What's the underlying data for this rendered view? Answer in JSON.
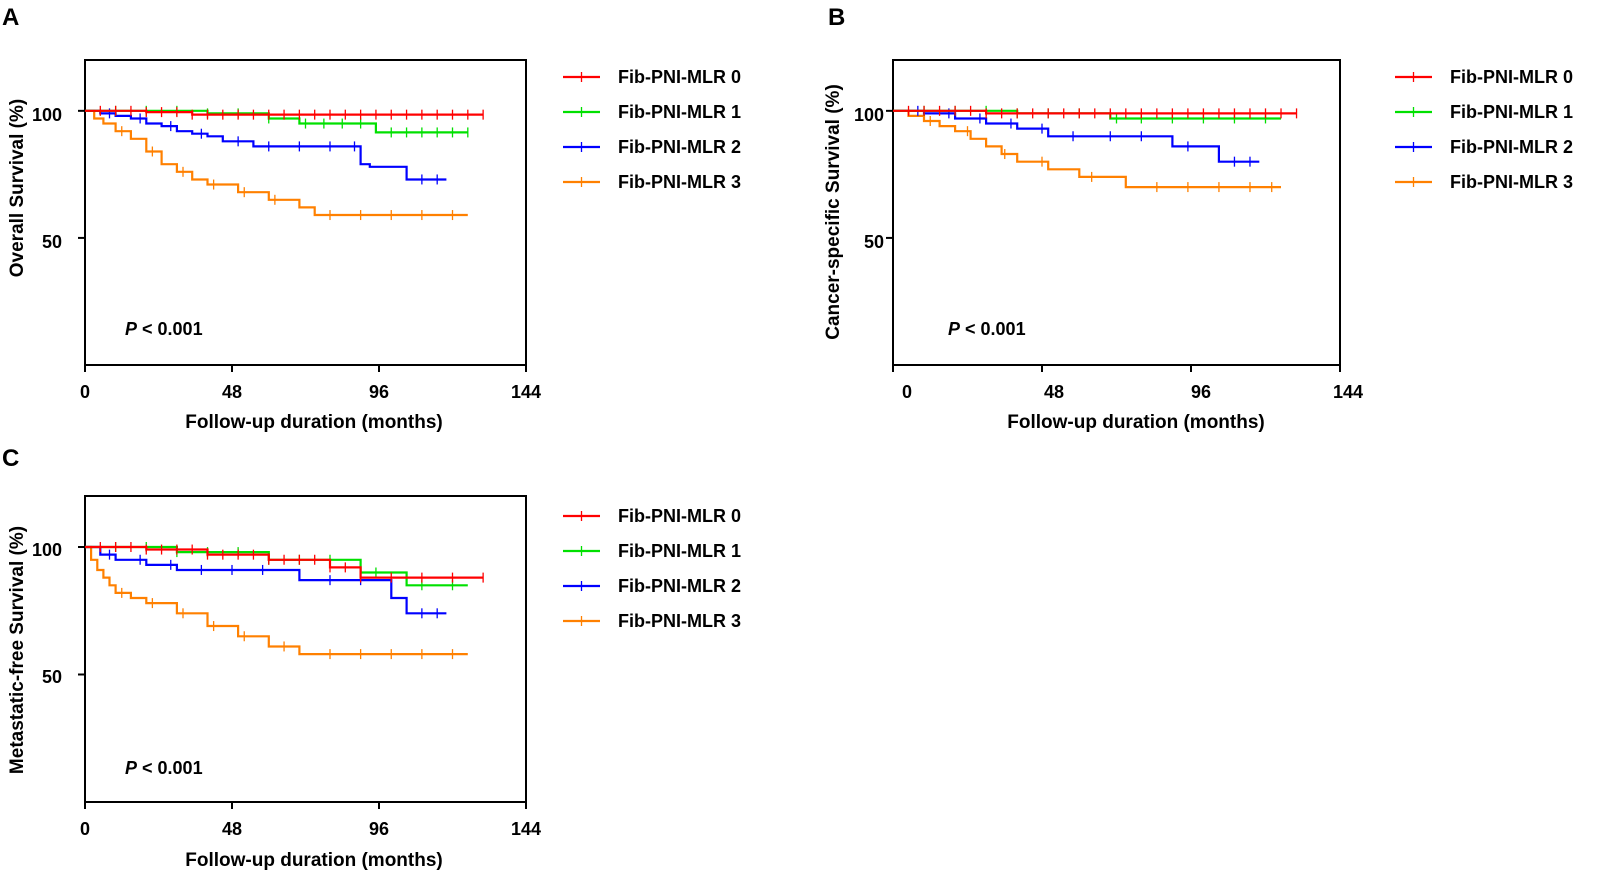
{
  "chart_data": [
    {
      "type": "line",
      "panel": "A",
      "title": "",
      "xlabel": "Follow-up duration (months)",
      "ylabel": "Overall Survival (%)",
      "xlim": [
        0,
        144
      ],
      "ylim": [
        0,
        120
      ],
      "xticks": [
        "0",
        "48",
        "96",
        "144"
      ],
      "yticks": [
        "50",
        "100"
      ],
      "grid": false,
      "legend": "right",
      "p_prefix": "P",
      "p_rest": " < 0.001",
      "series": [
        {
          "name": "Fib-PNI-MLR 0",
          "color": "#ff0000",
          "x": [
            0,
            20,
            35,
            130
          ],
          "y": [
            100,
            99.5,
            98.5,
            98.5
          ],
          "censor": [
            5,
            10,
            15,
            20,
            25,
            30,
            35,
            40,
            45,
            50,
            55,
            60,
            65,
            70,
            75,
            80,
            85,
            90,
            95,
            100,
            105,
            110,
            115,
            120,
            125,
            130
          ]
        },
        {
          "name": "Fib-PNI-MLR 1",
          "color": "#00e000",
          "x": [
            0,
            40,
            60,
            70,
            95,
            125
          ],
          "y": [
            100,
            99,
            97,
            95,
            91.5,
            91.5
          ],
          "censor": [
            10,
            20,
            30,
            40,
            50,
            60,
            72,
            78,
            84,
            90,
            100,
            105,
            110,
            115,
            120,
            125
          ]
        },
        {
          "name": "Fib-PNI-MLR 2",
          "color": "#0000ff",
          "x": [
            0,
            5,
            10,
            15,
            20,
            25,
            30,
            35,
            40,
            45,
            55,
            90,
            93,
            105,
            118
          ],
          "y": [
            100,
            99,
            98,
            97,
            95,
            94,
            92,
            91,
            90,
            88,
            86,
            79,
            78,
            73,
            73
          ],
          "censor": [
            8,
            18,
            28,
            38,
            50,
            60,
            70,
            80,
            88,
            110,
            115
          ]
        },
        {
          "name": "Fib-PNI-MLR 3",
          "color": "#ff8000",
          "x": [
            0,
            3,
            6,
            10,
            15,
            20,
            25,
            30,
            35,
            40,
            50,
            60,
            70,
            75,
            125
          ],
          "y": [
            100,
            97,
            95,
            92,
            89,
            84,
            79,
            76,
            73,
            71,
            68,
            65,
            62,
            59,
            59
          ],
          "censor": [
            12,
            22,
            32,
            42,
            52,
            62,
            80,
            90,
            100,
            110,
            120
          ]
        }
      ]
    },
    {
      "type": "line",
      "panel": "B",
      "title": "",
      "xlabel": "Follow-up duration (months)",
      "ylabel": "Cancer-specific Survival (%)",
      "xlim": [
        0,
        144
      ],
      "ylim": [
        0,
        120
      ],
      "xticks": [
        "0",
        "48",
        "96",
        "144"
      ],
      "yticks": [
        "50",
        "100"
      ],
      "grid": false,
      "legend": "right",
      "p_prefix": "P",
      "p_rest": " < 0.001",
      "series": [
        {
          "name": "Fib-PNI-MLR 0",
          "color": "#ff0000",
          "x": [
            0,
            30,
            130
          ],
          "y": [
            100,
            99,
            99
          ],
          "censor": [
            5,
            10,
            15,
            20,
            25,
            30,
            35,
            40,
            45,
            50,
            55,
            60,
            65,
            70,
            75,
            80,
            85,
            90,
            95,
            100,
            105,
            110,
            115,
            120,
            125,
            130
          ]
        },
        {
          "name": "Fib-PNI-MLR 1",
          "color": "#00e000",
          "x": [
            0,
            40,
            70,
            125
          ],
          "y": [
            100,
            99,
            97,
            97
          ],
          "censor": [
            10,
            20,
            30,
            40,
            50,
            60,
            72,
            80,
            90,
            100,
            110,
            120
          ]
        },
        {
          "name": "Fib-PNI-MLR 2",
          "color": "#0000ff",
          "x": [
            0,
            10,
            20,
            30,
            40,
            50,
            90,
            105,
            118
          ],
          "y": [
            100,
            99,
            97,
            95,
            93,
            90,
            86,
            80,
            80
          ],
          "censor": [
            8,
            18,
            28,
            38,
            48,
            58,
            70,
            80,
            95,
            110,
            115
          ]
        },
        {
          "name": "Fib-PNI-MLR 3",
          "color": "#ff8000",
          "x": [
            0,
            5,
            10,
            15,
            20,
            25,
            30,
            35,
            40,
            50,
            60,
            75,
            125
          ],
          "y": [
            100,
            98,
            96,
            94,
            92,
            89,
            86,
            83,
            80,
            77,
            74,
            70,
            70
          ],
          "censor": [
            12,
            24,
            36,
            48,
            64,
            85,
            95,
            105,
            115,
            122
          ]
        }
      ]
    },
    {
      "type": "line",
      "panel": "C",
      "title": "",
      "xlabel": "Follow-up duration (months)",
      "ylabel": "Metastatic-free Survival (%)",
      "xlim": [
        0,
        144
      ],
      "ylim": [
        0,
        120
      ],
      "xticks": [
        "0",
        "48",
        "96",
        "144"
      ],
      "yticks": [
        "50",
        "100"
      ],
      "grid": false,
      "legend": "right",
      "p_prefix": "P",
      "p_rest": " < 0.001",
      "series": [
        {
          "name": "Fib-PNI-MLR 0",
          "color": "#ff0000",
          "x": [
            0,
            20,
            40,
            60,
            80,
            90,
            130
          ],
          "y": [
            100,
            99,
            97,
            95,
            92,
            88,
            88
          ],
          "censor": [
            5,
            10,
            15,
            20,
            25,
            30,
            35,
            40,
            45,
            50,
            55,
            60,
            65,
            70,
            75,
            80,
            85,
            90,
            100,
            110,
            120,
            130
          ]
        },
        {
          "name": "Fib-PNI-MLR 1",
          "color": "#00e000",
          "x": [
            0,
            30,
            60,
            90,
            105,
            125
          ],
          "y": [
            100,
            98,
            95,
            90,
            85,
            85
          ],
          "censor": [
            10,
            20,
            30,
            40,
            50,
            60,
            70,
            80,
            95,
            110,
            120
          ]
        },
        {
          "name": "Fib-PNI-MLR 2",
          "color": "#0000ff",
          "x": [
            0,
            5,
            10,
            20,
            30,
            70,
            100,
            105,
            118
          ],
          "y": [
            100,
            97,
            95,
            93,
            91,
            87,
            80,
            74,
            74
          ],
          "censor": [
            8,
            18,
            28,
            38,
            48,
            58,
            80,
            90,
            110,
            115
          ]
        },
        {
          "name": "Fib-PNI-MLR 3",
          "color": "#ff8000",
          "x": [
            0,
            2,
            4,
            6,
            8,
            10,
            15,
            20,
            30,
            40,
            50,
            60,
            70,
            125
          ],
          "y": [
            100,
            95,
            91,
            88,
            85,
            82,
            80,
            78,
            74,
            69,
            65,
            61,
            58,
            58
          ],
          "censor": [
            12,
            22,
            32,
            42,
            52,
            65,
            80,
            90,
            100,
            110,
            120
          ]
        }
      ]
    }
  ]
}
